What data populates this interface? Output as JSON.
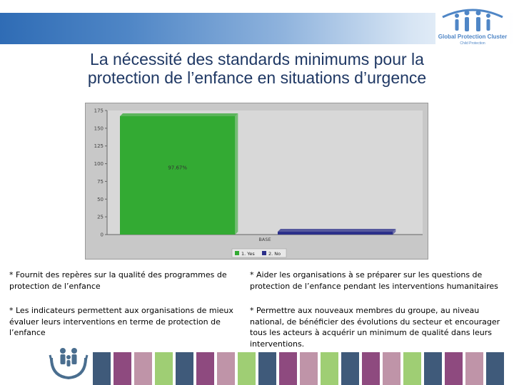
{
  "header": {
    "logo_title": "Global Protection Cluster",
    "logo_subtitle": "Child Protection",
    "colors": {
      "band_start": "#2f6cb5",
      "logo": "#4f86c6"
    }
  },
  "slide": {
    "title_line1": "La nécessité des standards minimums pour la",
    "title_line2": "protection de l’enfance en situations d’urgence"
  },
  "chart_data": {
    "type": "bar",
    "categories": [
      "BASE"
    ],
    "series": [
      {
        "name": "1. Yes",
        "values": [
          167
        ],
        "color": "#33aa33",
        "label": "97.67%"
      },
      {
        "name": "2. No",
        "values": [
          4
        ],
        "color": "#2b2f8a"
      }
    ],
    "yticks": [
      0,
      25,
      50,
      75,
      100,
      125,
      150,
      175
    ],
    "ylim": [
      0,
      175
    ],
    "grid": false,
    "legend_position": "bottom"
  },
  "notes": [
    "* Fournit des repères sur la qualité des programmes de protection de l’enfance",
    "* Aider les organisations à se préparer sur les questions de protection de l’enfance pendant les interventions humanitaires",
    "* Les indicateurs permettent aux organisations de mieux évaluer leurs interventions en terme de protection de l’enfance",
    "* Permettre aux nouveaux membres du groupe, au niveau national, de bénéficier des évolutions du secteur et encourager tous les acteurs à acquérir un minimum de qualité dans leurs interventions."
  ],
  "footer": {
    "stripe_colors": [
      "#3f5a7a",
      "#8e4a7f",
      "#bf94a8",
      "#9fce74",
      "#3f5a7a",
      "#8e4a7f",
      "#bf94a8",
      "#9fce74",
      "#3f5a7a",
      "#8e4a7f",
      "#bf94a8",
      "#9fce74",
      "#3f5a7a",
      "#8e4a7f",
      "#bf94a8",
      "#9fce74",
      "#3f5a7a",
      "#8e4a7f",
      "#bf94a8",
      "#3f5a7a"
    ]
  }
}
